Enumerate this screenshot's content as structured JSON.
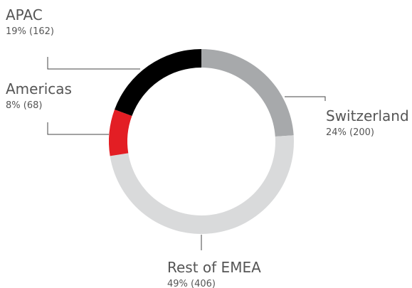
{
  "chart_data": {
    "type": "donut",
    "categories": [
      "Switzerland",
      "Rest of EMEA",
      "Americas",
      "APAC"
    ],
    "values": [
      200,
      406,
      68,
      162
    ],
    "value_labels": [
      "24% (200)",
      "49% (406)",
      "8% (68)",
      "19% (162)"
    ],
    "colors": [
      "#a7a9ab",
      "#d9dadb",
      "#e31e24",
      "#000000"
    ]
  }
}
